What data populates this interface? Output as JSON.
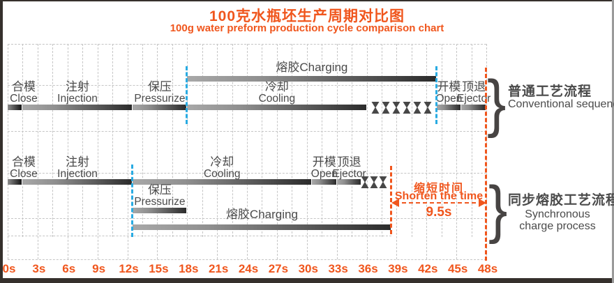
{
  "title": "100克水瓶坯生产周期对比图",
  "subtitle": "100g water preform production cycle comparison chart",
  "brace_glyph": "}",
  "colors": {
    "accent_orange": "#f0561d",
    "sync_blue": "#29abe2",
    "bar_dark": "#2b2b2b",
    "text_gray": "#4a4a4a",
    "grid_gray": "#c5c5c5"
  },
  "chart_data": {
    "type": "bar",
    "variant": "gantt-comparison-timeline",
    "x_unit": "seconds",
    "x_range": [
      0,
      48
    ],
    "grid": "on",
    "x_ticks": [
      "0s",
      "3s",
      "6s",
      "9s",
      "12s",
      "15s",
      "18s",
      "21s",
      "24s",
      "27s",
      "30s",
      "33s",
      "36s",
      "39s",
      "42s",
      "45s",
      "48s"
    ],
    "sequences": [
      {
        "label_zh": "普通工艺流程",
        "label_en": "Conventional sequence",
        "total_s": 48,
        "sync_line_times": [
          18,
          43
        ],
        "tasks": [
          {
            "name_zh": "合模",
            "name_en": "Close",
            "start_s": 0,
            "end_s": 1.5,
            "lane": "main"
          },
          {
            "name_zh": "注射",
            "name_en": "Injection",
            "start_s": 1.5,
            "end_s": 12.5,
            "lane": "main"
          },
          {
            "name_zh": "保压",
            "name_en": "Pressurize",
            "start_s": 12.5,
            "end_s": 18,
            "lane": "main"
          },
          {
            "name_zh": "冷却",
            "name_en": "Cooling",
            "start_s": 18,
            "end_s": 36,
            "lane": "main"
          },
          {
            "name_zh": "熔胶",
            "name_en": "Charging",
            "start_s": 18,
            "end_s": 43,
            "lane": "above"
          },
          {
            "name_zh": "开模",
            "name_en": "Open",
            "start_s": 43,
            "end_s": 45.5,
            "lane": "main"
          },
          {
            "name_zh": "顶退",
            "name_en": "Ejector",
            "start_s": 45.5,
            "end_s": 48,
            "lane": "main"
          }
        ],
        "wait_markers": {
          "count": 6,
          "start_s": 36.5,
          "end_s": 42.5
        }
      },
      {
        "label_zh": "同步熔胶工艺流程",
        "label_en_line1": "Synchronous",
        "label_en_line2": "charge process",
        "total_s": 38.5,
        "sync_line_times": [
          12.5
        ],
        "tasks": [
          {
            "name_zh": "合模",
            "name_en": "Close",
            "start_s": 0,
            "end_s": 1.5,
            "lane": "main"
          },
          {
            "name_zh": "注射",
            "name_en": "Injection",
            "start_s": 1.5,
            "end_s": 12.5,
            "lane": "main"
          },
          {
            "name_zh": "冷却",
            "name_en": "Cooling",
            "start_s": 12.5,
            "end_s": 30.5,
            "lane": "main"
          },
          {
            "name_zh": "开模",
            "name_en": "Open",
            "start_s": 30.5,
            "end_s": 33,
            "lane": "main"
          },
          {
            "name_zh": "顶退",
            "name_en": "Ejector",
            "start_s": 33,
            "end_s": 35.5,
            "lane": "main"
          },
          {
            "name_zh": "保压",
            "name_en": "Pressurize",
            "start_s": 12.5,
            "end_s": 18,
            "lane": "below"
          },
          {
            "name_zh": "熔胶",
            "name_en": "Charging",
            "start_s": 12.5,
            "end_s": 38.5,
            "lane": "bottom"
          }
        ],
        "wait_markers": {
          "count": 3,
          "start_s": 35.5,
          "end_s": 38
        }
      }
    ],
    "annotation": {
      "label_zh": "缩短时间",
      "label_en": "Shorten the time",
      "value": "9.5s",
      "from_s": 38.5,
      "to_s": 48
    }
  }
}
